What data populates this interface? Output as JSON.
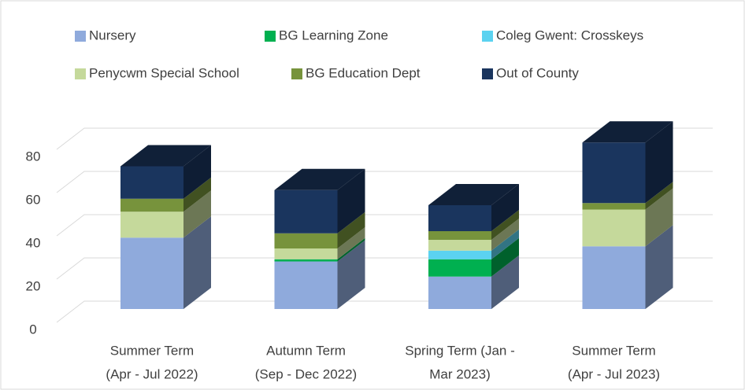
{
  "chart_data": {
    "type": "bar3d_stacked",
    "categories": [
      [
        "Summer Term",
        "(Apr - Jul 2022)"
      ],
      [
        "Autumn Term",
        "(Sep - Dec 2022)"
      ],
      [
        "Spring Term (Jan -",
        "Mar 2023)"
      ],
      [
        "Summer Term",
        "(Apr - Jul 2023)"
      ]
    ],
    "series": [
      {
        "name": "Nursery",
        "color": "#8faadc",
        "values": [
          33,
          22,
          15,
          29
        ]
      },
      {
        "name": "BG Learning Zone",
        "color": "#00b050",
        "values": [
          0,
          1,
          8,
          0
        ]
      },
      {
        "name": "Coleg Gwent: Crosskeys",
        "color": "#5bd2f0",
        "values": [
          0,
          0,
          4,
          0
        ]
      },
      {
        "name": "Penycwm Special School",
        "color": "#c5d99b",
        "values": [
          12,
          5,
          5,
          17
        ]
      },
      {
        "name": "BG Education Dept",
        "color": "#77933c",
        "values": [
          6,
          7,
          4,
          3
        ]
      },
      {
        "name": "Out of County",
        "color": "#1a355e",
        "values": [
          15,
          20,
          12,
          28
        ]
      }
    ],
    "ylim": [
      0,
      90
    ],
    "yticks": [
      0,
      20,
      40,
      60,
      80
    ],
    "grid": true,
    "legend": "top"
  }
}
